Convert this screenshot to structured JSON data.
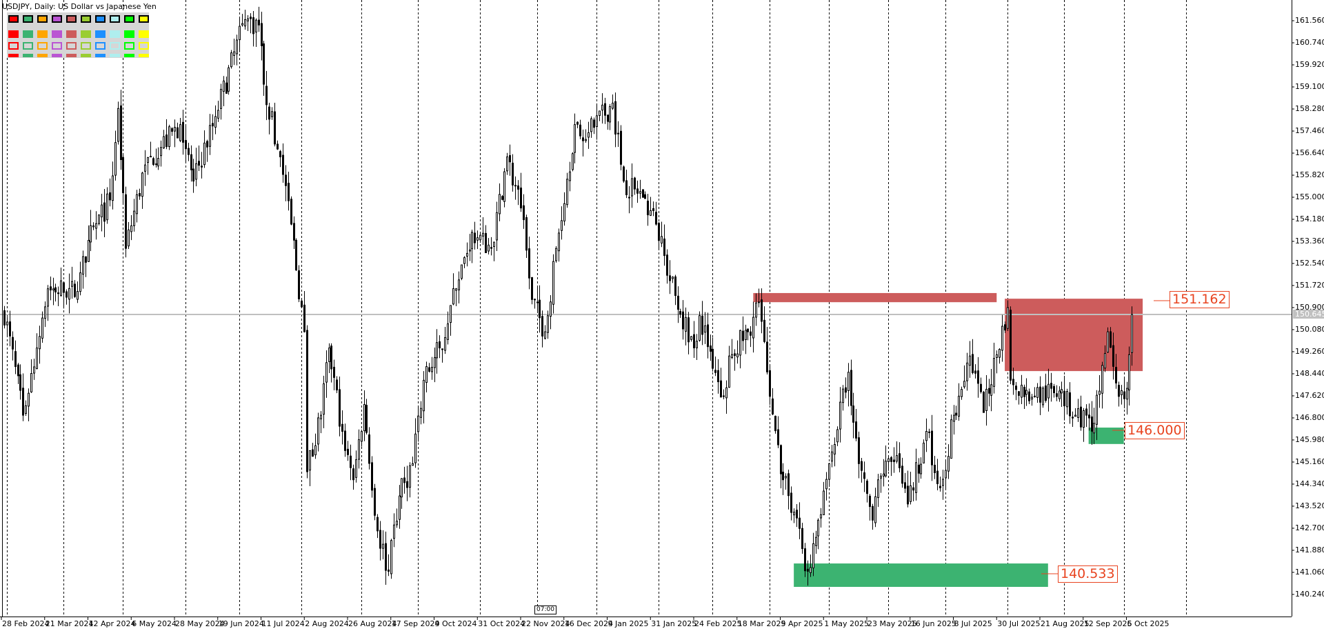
{
  "window": {
    "title": "USDJPY, Daily:  US Dollar vs Japanese Yen"
  },
  "palette": {
    "colors": [
      "#ff0000",
      "#3cb371",
      "#ffa500",
      "#ba55d3",
      "#cd5c5c",
      "#9acd32",
      "#1e90ff",
      "#afeeee",
      "#00ff00",
      "#ffff00"
    ],
    "rows": [
      "selected-bordered",
      "solid",
      "outlined",
      "bar"
    ]
  },
  "chart_data": {
    "type": "candlestick",
    "symbol": "USDJPY",
    "timeframe": "Daily",
    "y_ticks": [
      "161.560",
      "160.740",
      "159.920",
      "159.100",
      "158.280",
      "157.460",
      "156.640",
      "155.820",
      "155.000",
      "154.180",
      "153.360",
      "152.540",
      "151.720",
      "150.900",
      "150.080",
      "149.260",
      "148.440",
      "147.620",
      "146.800",
      "145.980",
      "145.160",
      "144.340",
      "143.520",
      "142.700",
      "141.880",
      "141.060",
      "140.240"
    ],
    "x_ticks": [
      "28 Feb 2024",
      "21 Mar 2024",
      "12 Apr 2024",
      "6 May 2024",
      "28 May 2024",
      "19 Jun 2024",
      "11 Jul 2024",
      "2 Aug 2024",
      "26 Aug 2024",
      "17 Sep 2024",
      "9 Oct 2024",
      "31 Oct 2024",
      "22 Nov 2024",
      "16 Dec 2024",
      "9 Jan 2025",
      "31 Jan 2025",
      "24 Feb 2025",
      "18 Mar 2025",
      "9 Apr 2025",
      "1 May 2025",
      "23 May 2025",
      "16 Jun 2025",
      "8 Jul 2025",
      "30 Jul 2025",
      "21 Aug 2025",
      "12 Sep 2025",
      "6 Oct 2025"
    ],
    "current_price": "150.645",
    "current_price_color": "#c0c0c0",
    "grid": "vertical dashed",
    "price_path": [
      [
        "2024-02-29",
        150.7
      ],
      [
        "2024-03-11",
        146.9
      ],
      [
        "2024-03-18",
        149.4
      ],
      [
        "2024-03-22",
        151.6
      ],
      [
        "2024-04-08",
        151.5
      ],
      [
        "2024-04-12",
        153.4
      ],
      [
        "2024-04-24",
        154.9
      ],
      [
        "2024-04-29",
        158.3
      ],
      [
        "2024-05-02",
        153.1
      ],
      [
        "2024-05-13",
        156.2
      ],
      [
        "2024-05-30",
        157.7
      ],
      [
        "2024-06-06",
        155.6
      ],
      [
        "2024-06-18",
        158.0
      ],
      [
        "2024-07-03",
        161.6
      ],
      [
        "2024-07-10",
        161.4
      ],
      [
        "2024-07-12",
        159.2
      ],
      [
        "2024-07-22",
        156.5
      ],
      [
        "2024-07-26",
        154.0
      ],
      [
        "2024-08-02",
        150.0
      ],
      [
        "2024-08-05",
        144.8
      ],
      [
        "2024-08-12",
        146.9
      ],
      [
        "2024-08-15",
        149.4
      ],
      [
        "2024-08-22",
        146.3
      ],
      [
        "2024-08-28",
        144.5
      ],
      [
        "2024-09-03",
        147.3
      ],
      [
        "2024-09-10",
        142.6
      ],
      [
        "2024-09-16",
        141.1
      ],
      [
        "2024-09-20",
        143.9
      ],
      [
        "2024-09-27",
        145.1
      ],
      [
        "2024-10-03",
        148.2
      ],
      [
        "2024-10-11",
        149.4
      ],
      [
        "2024-10-21",
        151.6
      ],
      [
        "2024-10-29",
        153.7
      ],
      [
        "2024-11-07",
        153.1
      ],
      [
        "2024-11-15",
        156.5
      ],
      [
        "2024-11-22",
        154.6
      ],
      [
        "2024-11-28",
        151.2
      ],
      [
        "2024-12-05",
        150.0
      ],
      [
        "2024-12-11",
        153.1
      ],
      [
        "2024-12-20",
        157.7
      ],
      [
        "2024-12-27",
        157.4
      ],
      [
        "2025-01-09",
        158.5
      ],
      [
        "2025-01-15",
        155.6
      ],
      [
        "2025-01-24",
        155.0
      ],
      [
        "2025-01-31",
        154.0
      ],
      [
        "2025-02-07",
        151.9
      ],
      [
        "2025-02-20",
        149.4
      ],
      [
        "2025-02-24",
        150.6
      ],
      [
        "2025-03-07",
        147.6
      ],
      [
        "2025-03-11",
        149.1
      ],
      [
        "2025-03-20",
        150.0
      ],
      [
        "2025-03-26",
        151.1
      ],
      [
        "2025-04-01",
        147.6
      ],
      [
        "2025-04-08",
        144.5
      ],
      [
        "2025-04-14",
        143.3
      ],
      [
        "2025-04-21",
        141.1
      ],
      [
        "2025-04-25",
        143.0
      ],
      [
        "2025-05-01",
        145.1
      ],
      [
        "2025-05-12",
        148.5
      ],
      [
        "2025-05-16",
        145.1
      ],
      [
        "2025-05-23",
        143.0
      ],
      [
        "2025-05-27",
        144.5
      ],
      [
        "2025-06-05",
        145.4
      ],
      [
        "2025-06-11",
        143.6
      ],
      [
        "2025-06-20",
        146.3
      ],
      [
        "2025-06-27",
        144.2
      ],
      [
        "2025-07-04",
        146.9
      ],
      [
        "2025-07-14",
        149.1
      ],
      [
        "2025-07-21",
        147.0
      ],
      [
        "2025-08-01",
        150.9
      ],
      [
        "2025-08-04",
        148.2
      ],
      [
        "2025-08-15",
        147.6
      ],
      [
        "2025-08-28",
        147.8
      ],
      [
        "2025-09-05",
        146.9
      ],
      [
        "2025-09-11",
        146.9
      ],
      [
        "2025-09-16",
        146.6
      ],
      [
        "2025-09-23",
        150.0
      ],
      [
        "2025-09-29",
        147.6
      ],
      [
        "2025-10-02",
        147.9
      ],
      [
        "2025-10-06",
        150.645
      ]
    ],
    "zones": [
      {
        "type": "supply",
        "from": "2025-03-24",
        "to": "2025-07-28",
        "top": 151.44,
        "bottom": 151.1,
        "color": "#cd5c5c"
      },
      {
        "type": "supply",
        "from": "2025-07-31",
        "to": "2025-10-10",
        "top": 151.23,
        "bottom": 148.54,
        "color": "#cd5c5c"
      },
      {
        "type": "demand",
        "from": "2025-09-12",
        "to": "2025-10-01",
        "top": 146.44,
        "bottom": 145.83,
        "color": "#3cb371"
      },
      {
        "type": "demand",
        "from": "2025-04-14",
        "to": "2025-08-22",
        "top": 141.39,
        "bottom": 140.52,
        "color": "#3cb371"
      }
    ],
    "level_labels": [
      "151.162",
      "146.000",
      "140.533"
    ],
    "level_color": "#e8431f",
    "time_marker": "07:00"
  }
}
